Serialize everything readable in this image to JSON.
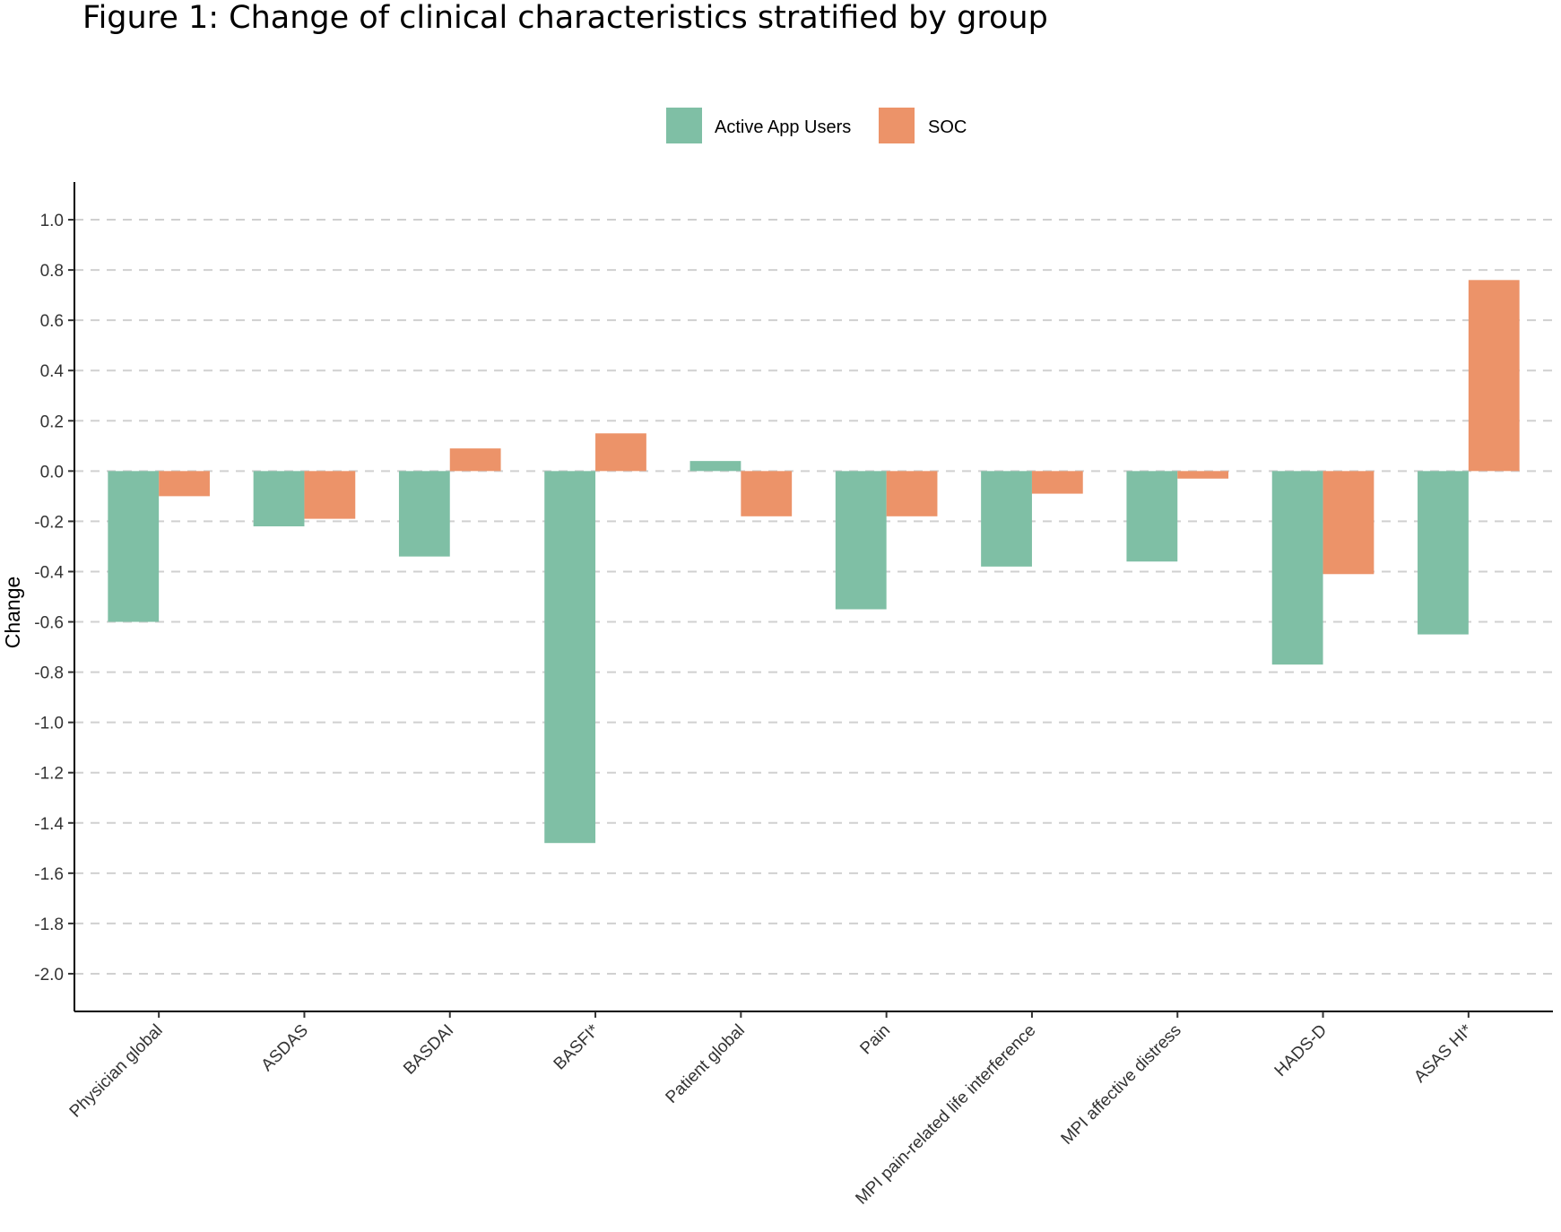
{
  "figure_title": "Figure 1: Change of clinical characteristics stratified by group",
  "chart_data": {
    "type": "bar",
    "title": "Figure 1: Change of clinical characteristics stratified by group",
    "xlabel": "",
    "ylabel": "Change",
    "ylim": [
      -2.15,
      1.15
    ],
    "yticks": [
      1.0,
      0.8,
      0.6,
      0.4,
      0.2,
      0.0,
      -0.2,
      -0.4,
      -0.6,
      -0.8,
      -1.0,
      -1.2,
      -1.4,
      -1.6,
      -1.8,
      -2.0
    ],
    "ytick_labels": [
      "1.0",
      "0.8",
      "0.6",
      "0.4",
      "0.2",
      "0.0",
      "-0.2",
      "-0.4",
      "-0.6",
      "-0.8",
      "-1.0",
      "-1.2",
      "-1.4",
      "-1.6",
      "-1.8",
      "-2.0"
    ],
    "grid": "horizontal dashed",
    "legend_position": "top",
    "categories": [
      "Physician global",
      "ASDAS",
      "BASDAI",
      "BASFI*",
      "Patient global",
      "Pain",
      "MPI pain-related life interference",
      "MPI affective distress",
      "HADS-D",
      "ASAS HI*"
    ],
    "series": [
      {
        "name": "Active App Users",
        "color": "#7fbfa5",
        "values": [
          -0.6,
          -0.22,
          -0.34,
          -1.48,
          0.04,
          -0.55,
          -0.38,
          -0.36,
          -0.77,
          -0.65
        ]
      },
      {
        "name": "SOC",
        "color": "#ec9369",
        "values": [
          -0.1,
          -0.19,
          0.09,
          0.15,
          -0.18,
          -0.18,
          -0.09,
          -0.03,
          -0.41,
          0.76
        ]
      }
    ]
  }
}
